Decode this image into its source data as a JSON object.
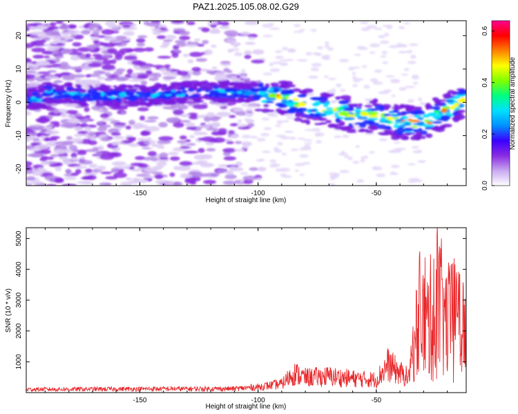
{
  "title": "PAZ1.2025.105.08.02.G29",
  "chart_data": [
    {
      "type": "heatmap",
      "xlabel": "Height of straight line (km)",
      "ylabel": "Frequency (Hz)",
      "xlim": [
        -198,
        -12
      ],
      "ylim": [
        -25,
        24.5
      ],
      "xticks": [
        -150,
        -100,
        -50
      ],
      "yticks": [
        -20,
        -10,
        0,
        10,
        20
      ],
      "colorbar_label": "Normalized spectral amplitude",
      "colorbar_range": [
        0.0,
        0.64
      ],
      "colorbar_ticks": [
        0.0,
        0.2,
        0.4,
        0.6
      ],
      "colormap_stops": [
        "#ffffff",
        "#c8a8f0",
        "#8a2be2",
        "#3a00ff",
        "#0090ff",
        "#00e0ff",
        "#00ff80",
        "#80ff00",
        "#ffff00",
        "#ff8000",
        "#ff0000",
        "#ff0090"
      ],
      "ridge": [
        {
          "x": -190,
          "y": 3
        },
        {
          "x": -170,
          "y": 2
        },
        {
          "x": -150,
          "y": 2
        },
        {
          "x": -130,
          "y": 3
        },
        {
          "x": -110,
          "y": 3
        },
        {
          "x": -100,
          "y": 2.5
        },
        {
          "x": -90,
          "y": 1.5
        },
        {
          "x": -80,
          "y": -1
        },
        {
          "x": -70,
          "y": -2
        },
        {
          "x": -60,
          "y": -4
        },
        {
          "x": -50,
          "y": -4
        },
        {
          "x": -40,
          "y": -6
        },
        {
          "x": -30,
          "y": -6
        },
        {
          "x": -20,
          "y": -2
        },
        {
          "x": -12,
          "y": 1
        }
      ]
    },
    {
      "type": "line",
      "xlabel": "Height of straight line (km)",
      "ylabel": "SNR (10 * v/v)",
      "xlim": [
        -198,
        -12
      ],
      "ylim": [
        0,
        5350
      ],
      "xticks": [
        -150,
        -100,
        -50
      ],
      "yticks": [
        1000,
        2000,
        3000,
        4000,
        5000
      ],
      "series": [
        {
          "color": "#e8282b",
          "envelope": [
            {
              "x": -198,
              "y": 150
            },
            {
              "x": -150,
              "y": 170
            },
            {
              "x": -110,
              "y": 180
            },
            {
              "x": -100,
              "y": 260
            },
            {
              "x": -90,
              "y": 400
            },
            {
              "x": -85,
              "y": 900
            },
            {
              "x": -80,
              "y": 700
            },
            {
              "x": -70,
              "y": 750
            },
            {
              "x": -60,
              "y": 650
            },
            {
              "x": -50,
              "y": 600
            },
            {
              "x": -45,
              "y": 1300
            },
            {
              "x": -40,
              "y": 900
            },
            {
              "x": -36,
              "y": 700
            },
            {
              "x": -32,
              "y": 3200
            },
            {
              "x": -28,
              "y": 3000
            },
            {
              "x": -24,
              "y": 4000
            },
            {
              "x": -20,
              "y": 3000
            },
            {
              "x": -16,
              "y": 3300
            },
            {
              "x": -12,
              "y": 2400
            }
          ]
        }
      ]
    }
  ]
}
